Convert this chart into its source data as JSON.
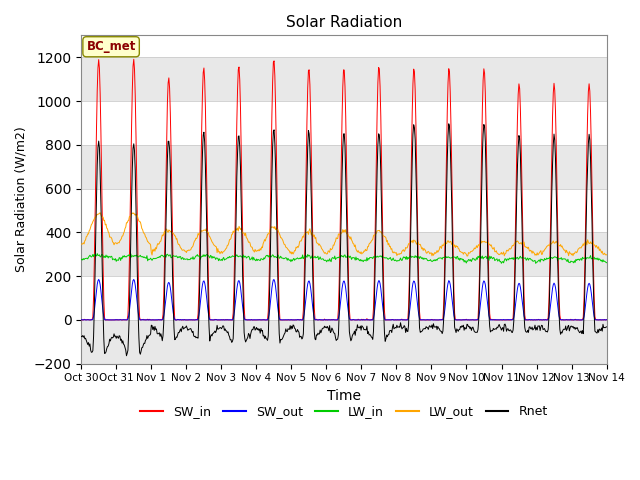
{
  "title": "Solar Radiation",
  "xlabel": "Time",
  "ylabel": "Solar Radiation (W/m2)",
  "ylim": [
    -200,
    1300
  ],
  "yticks": [
    -200,
    0,
    200,
    400,
    600,
    800,
    1000,
    1200
  ],
  "station_label": "BC_met",
  "n_days": 15,
  "colors": {
    "SW_in": "#ff0000",
    "SW_out": "#0000ff",
    "LW_in": "#00cc00",
    "LW_out": "#ffa500",
    "Rnet": "#000000"
  },
  "tick_labels": [
    "Oct 30",
    "Oct 31",
    "Nov 1",
    "Nov 2",
    "Nov 3",
    "Nov 4",
    "Nov 5",
    "Nov 6",
    "Nov 7",
    "Nov 8",
    "Nov 9",
    "Nov 10",
    "Nov 11",
    "Nov 12",
    "Nov 13",
    "Nov 14"
  ],
  "legend_labels": [
    "SW_in",
    "SW_out",
    "LW_in",
    "LW_out",
    "Rnet"
  ]
}
